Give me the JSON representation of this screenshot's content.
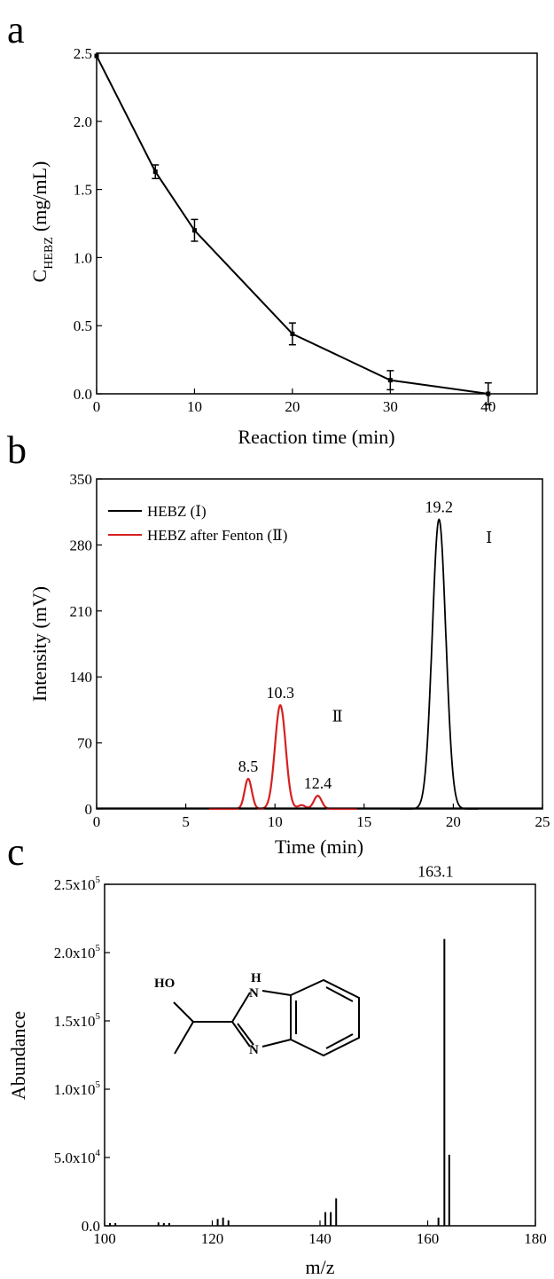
{
  "figure": {
    "panel_labels": [
      "a",
      "b",
      "c"
    ]
  },
  "colors": {
    "black": "#000000",
    "red": "#d62020"
  },
  "chart_data": [
    {
      "panel": "a",
      "type": "line",
      "xlabel": "Reaction time (min)",
      "ylabel_main": "C",
      "ylabel_sub": "HEBZ",
      "ylabel_unit": "(mg/mL)",
      "xlim": [
        0,
        45
      ],
      "ylim": [
        0,
        2.5
      ],
      "xticks": [
        0,
        10,
        20,
        30,
        40
      ],
      "yticks": [
        0.0,
        0.5,
        1.0,
        1.5,
        2.0,
        2.5
      ],
      "xtick_labels": [
        "0",
        "10",
        "20",
        "30",
        "40"
      ],
      "ytick_labels": [
        "0.0",
        "0.5",
        "1.0",
        "1.5",
        "2.0",
        "2.5"
      ],
      "series": [
        {
          "x": [
            0,
            6,
            10,
            20,
            30,
            40
          ],
          "y": [
            2.48,
            1.63,
            1.2,
            0.44,
            0.1,
            0.0
          ],
          "err": [
            0.0,
            0.05,
            0.08,
            0.08,
            0.07,
            0.08
          ]
        }
      ]
    },
    {
      "panel": "b",
      "type": "line",
      "xlabel": "Time (min)",
      "ylabel": "Intensity (mV)",
      "xlim": [
        0,
        25
      ],
      "ylim": [
        0,
        350
      ],
      "xticks": [
        0,
        5,
        10,
        15,
        20,
        25
      ],
      "yticks": [
        0,
        70,
        140,
        210,
        280,
        350
      ],
      "xtick_labels": [
        "0",
        "5",
        "10",
        "15",
        "20",
        "25"
      ],
      "ytick_labels": [
        "0",
        "70",
        "140",
        "210",
        "280",
        "350"
      ],
      "legend_position": "top-left",
      "series": [
        {
          "name": "HEBZ (Ⅰ)",
          "color": "#000000",
          "peaks": [
            {
              "center": 19.2,
              "height": 307,
              "width": 0.38
            }
          ]
        },
        {
          "name": "HEBZ after Fenton (Ⅱ)",
          "color": "#d62020",
          "peaks": [
            {
              "center": 8.5,
              "height": 32,
              "width": 0.2
            },
            {
              "center": 10.3,
              "height": 110,
              "width": 0.3
            },
            {
              "center": 11.5,
              "height": 4,
              "width": 0.2
            },
            {
              "center": 12.4,
              "height": 14,
              "width": 0.22
            }
          ]
        }
      ],
      "annotations": [
        {
          "text": "19.2",
          "x": 19.2,
          "y": 307
        },
        {
          "text": "10.3",
          "x": 10.3,
          "y": 110
        },
        {
          "text": "8.5",
          "x": 8.5,
          "y": 32
        },
        {
          "text": "12.4",
          "x": 12.4,
          "y": 14
        },
        {
          "text": "Ⅰ",
          "x": 22,
          "y": 290
        },
        {
          "text": "Ⅱ",
          "x": 13.5,
          "y": 100
        }
      ]
    },
    {
      "panel": "c",
      "type": "bar",
      "xlabel": "m/z",
      "ylabel": "Abundance",
      "xlim": [
        100,
        180
      ],
      "ylim": [
        0,
        250000
      ],
      "xticks": [
        100,
        120,
        140,
        160,
        180
      ],
      "yticks": [
        0,
        50000,
        100000,
        150000,
        200000,
        250000
      ],
      "xtick_labels": [
        "100",
        "120",
        "140",
        "160",
        "180"
      ],
      "ytick_labels": [
        "0.0",
        "5.0x10",
        "1.0x10",
        "1.5x10",
        "2.0x10",
        "2.5x10"
      ],
      "ytick_exponents": [
        "",
        "4",
        "5",
        "5",
        "5",
        "5"
      ],
      "x": [
        101,
        102,
        110,
        111,
        112,
        121,
        122,
        123,
        141,
        142,
        143,
        162,
        163.1,
        164
      ],
      "values": [
        2000,
        2000,
        2500,
        2000,
        2000,
        5000,
        6000,
        4000,
        10000,
        10000,
        20000,
        6000,
        210000,
        52000
      ],
      "annotations": [
        {
          "text": "163.1",
          "x": 163.1,
          "y": 210000
        }
      ],
      "molecule_labels": {
        "hydroxyl": "HO",
        "nh": "H",
        "n_top": "N",
        "n_bottom": "N"
      }
    }
  ]
}
